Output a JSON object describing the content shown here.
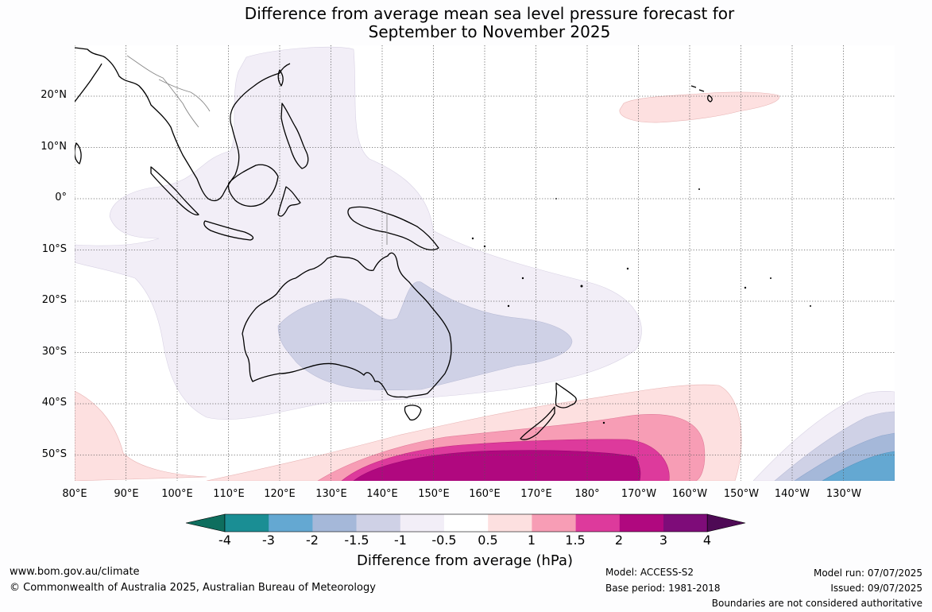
{
  "title": [
    "Difference from average mean sea level pressure forecast for",
    "September to November 2025"
  ],
  "latitude_labels": [
    "20°N",
    "10°N",
    "0°",
    "10°S",
    "20°S",
    "30°S",
    "40°S",
    "50°S"
  ],
  "longitude_labels": [
    "80°E",
    "90°E",
    "100°E",
    "110°E",
    "120°E",
    "130°E",
    "140°E",
    "150°E",
    "160°E",
    "170°E",
    "180°",
    "170°W",
    "160°W",
    "150°W",
    "140°W",
    "130°W"
  ],
  "colorbar": {
    "title": "Difference from average (hPa)",
    "ticks": [
      "-4",
      "-3",
      "-2",
      "-1.5",
      "-1",
      "-0.5",
      "0.5",
      "1",
      "1.5",
      "2",
      "3",
      "4"
    ],
    "colors": [
      "#0e6e5e",
      "#1a8e94",
      "#64a8d2",
      "#a5b8d9",
      "#cfd1e6",
      "#f2eef7",
      "#ffffff",
      "#fde0e0",
      "#f79db5",
      "#dd3a9c",
      "#b0087f",
      "#7e0c79",
      "#4e0a55"
    ]
  },
  "footer": {
    "website": "www.bom.gov.au/climate",
    "copyright": "© Commonwealth of Australia 2025, Australian Bureau of Meteorology",
    "model": "Model: ACCESS-S2",
    "base_period": "Base period: 1981-2018",
    "model_run": "Model run: 07/07/2025",
    "issued": "Issued: 09/07/2025",
    "disclaimer": "Boundaries are not considered authoritative"
  }
}
